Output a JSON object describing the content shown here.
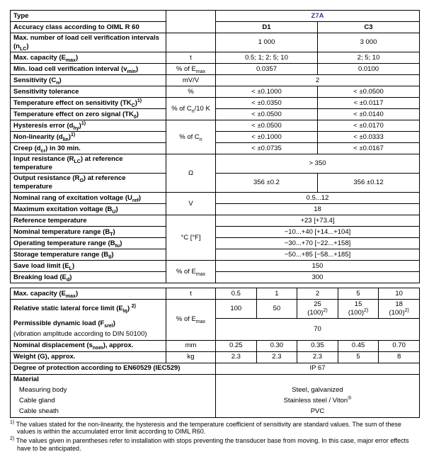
{
  "header": {
    "type": "Type",
    "model": "Z7A"
  },
  "t1": {
    "r1": {
      "label": "Accuracy class according to OIML R 60",
      "d1": "D1",
      "c3": "C3"
    },
    "r2": {
      "label": "Max. number of load cell verification intervals (n<sub>LC</sub>)",
      "d1": "1 000",
      "c3": "3 000"
    },
    "r3": {
      "label": "Max. capacity (E<sub>max</sub>)",
      "unit": "t",
      "d1": "0.5; 1; 2; 5; 10",
      "c3": "2; 5; 10"
    },
    "r4": {
      "label": "Min. load cell verification interval (v<sub>min</sub>)",
      "unit": "% of E<sub>max</sub>",
      "d1": "0.0357",
      "c3": "0.0100"
    },
    "r5": {
      "label": "Sensitivity (C<sub>n</sub>)",
      "unit": "mV/V",
      "val": "2"
    },
    "r6": {
      "label": "Sensitivity tolerance",
      "unit": "%",
      "d1": "< ±0.1000",
      "c3": "< ±0.0500"
    },
    "r7": {
      "label": "Temperature effect on sensitivity (TK<sub>C</sub>)<sup>1)</sup>",
      "d1": "< ±0.0350",
      "c3": "< ±0.0117"
    },
    "r8": {
      "label": "Temperature effect on zero signal (TK<sub>0</sub>)",
      "unit": "% of C<sub>n</sub>/10 K",
      "d1": "< ±0.0500",
      "c3": "< ±0.0140"
    },
    "r9": {
      "label": "Hysteresis error (d<sub>hy</sub>)<sup>1)</sup>",
      "d1": "< ±0.0500",
      "c3": "< ±0.0170"
    },
    "r10": {
      "label": "Non-linearity (d<sub>lin</sub>)<sup>1)</sup>",
      "unit": "% of C<sub>n</sub>",
      "d1": "< ±0.1000",
      "c3": "< ±0.0333"
    },
    "r11": {
      "label": "Creep (d<sub>cr</sub>) in 30 min.",
      "d1": "< ±0.0735",
      "c3": "< ±0.0167"
    },
    "r12": {
      "label": "Input resistance (R<sub>LC</sub>) at reference temperature",
      "val": "> 350"
    },
    "r13": {
      "label": "Output resistance (R<sub>O</sub>) at reference temperature",
      "unit": "Ω",
      "d1": "356 ±0.2",
      "c3": "356 ±0.12"
    },
    "r14": {
      "label": "Nominal rang of excitation voltage (U<sub>ref</sub>)",
      "val": "0.5...12"
    },
    "r15": {
      "label": "Maximum excitation voltage (B<sub>U</sub>)",
      "unit": "V",
      "val": "18"
    },
    "r16": {
      "label": "Reference temperature",
      "val": "+23 [+73.4]"
    },
    "r17": {
      "label": "Nominal temperature range (B<sub>T</sub>)",
      "val": "−10...+40 [+14...+104]"
    },
    "r18": {
      "label": "Operating temperature range (B<sub>tu</sub>)",
      "unit": "°C [°F]",
      "val": "−30...+70 [−22...+158]"
    },
    "r19": {
      "label": "Storage temperature range (B<sub>tl</sub>)",
      "val": "−50...+85 [−58...+185]"
    },
    "r20": {
      "label": "Save load limit (E<sub>L</sub>)",
      "val": "150"
    },
    "r21": {
      "label": "Breaking load (E<sub>d</sub>)",
      "unit": "% of E<sub>max</sub>",
      "val": "300"
    }
  },
  "t2": {
    "r1": {
      "label": "Max. capacity (E<sub>max</sub>)",
      "unit": "t",
      "v": [
        "0.5",
        "1",
        "2",
        "5",
        "10"
      ]
    },
    "r2": {
      "label": "Relative static lateral force limit (E<sub>lq</sub>) <sup>2)</sup>",
      "v": [
        "100",
        "50",
        "25<br>(100)<sup>2)</sup>",
        "15<br>(100)<sup>2)</sup>",
        "18<br>(100)<sup>2)</sup>"
      ]
    },
    "r3a": {
      "label": "Permissible dynamic load (F<sub>srel</sub>)",
      "unit": "% of E<sub>max</sub>"
    },
    "r3b": {
      "label": "(vibration amplitude according to DIN 50100)",
      "val": "70"
    },
    "r4": {
      "label": "Nominal displacement (s<sub>nom</sub>), approx.",
      "unit": "mm",
      "v": [
        "0.25",
        "0.30",
        "0.35",
        "0.45",
        "0.70"
      ]
    },
    "r5": {
      "label": "Weight (G), approx.",
      "unit": "kg",
      "v": [
        "2.3",
        "2.3",
        "2.3",
        "5",
        "8"
      ]
    },
    "r6": {
      "label": "Degree of protection according to EN60529 (IEC529)",
      "val": "IP 67"
    },
    "r7": {
      "label": "Material"
    },
    "r8": {
      "label": "&nbsp;&nbsp;&nbsp;Measuring body",
      "val": "Steel, galvanized"
    },
    "r9": {
      "label": "&nbsp;&nbsp;&nbsp;Cable gland",
      "val": "Stainless steel / Viton<sup>®</sup>"
    },
    "r10": {
      "label": "&nbsp;&nbsp;&nbsp;Cable sheath",
      "val": "PVC"
    }
  },
  "foot": {
    "f1": "<sup>1)</sup> The values stated for the non-linearity, the hysteresis and the temperature coefficient of sensitivity are standard values. The sum of these values is within the accumulated error limit according to OIML R60.",
    "f2": "<sup>2)</sup> The values given in parentheses refer to installation with stops preventing the transducer base from moving. In this case, major error effects have to be anticipated."
  }
}
